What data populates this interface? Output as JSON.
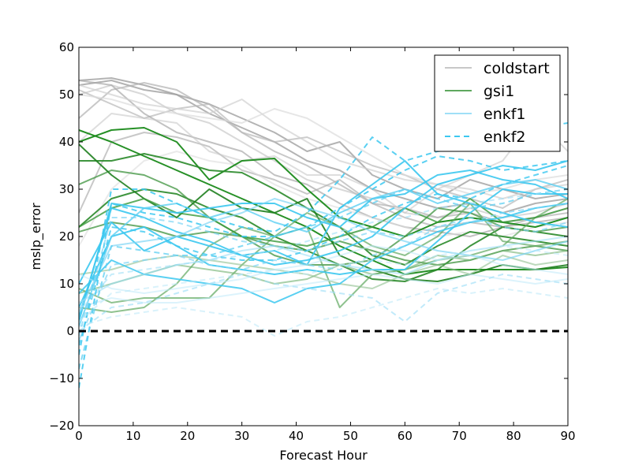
{
  "chart_data": {
    "type": "line",
    "title": "",
    "xlabel": "Forecast Hour",
    "ylabel": "mslp_error",
    "xlim": [
      0,
      90
    ],
    "ylim": [
      -20,
      60
    ],
    "xticks": [
      0,
      10,
      20,
      30,
      40,
      50,
      60,
      70,
      80,
      90
    ],
    "yticks": [
      -20,
      -10,
      0,
      10,
      20,
      30,
      40,
      50,
      60
    ],
    "xtick_labels": [
      "0",
      "10",
      "20",
      "30",
      "40",
      "50",
      "60",
      "70",
      "80",
      "90"
    ],
    "ytick_labels": [
      "−20",
      "−10",
      "0",
      "10",
      "20",
      "30",
      "40",
      "50",
      "60"
    ],
    "x": [
      0,
      6,
      12,
      18,
      24,
      30,
      36,
      42,
      48,
      54,
      60,
      66,
      72,
      78,
      84,
      90
    ],
    "legend_position": "top-right",
    "reference_line": {
      "y": 0,
      "style": "dashed",
      "color": "#000000"
    },
    "legend": [
      {
        "label": "coldstart",
        "color": "#c8c8c8"
      },
      {
        "label": "gsi1",
        "color": "#5fa85f"
      },
      {
        "label": "enkf1",
        "color": "#9fdff7"
      },
      {
        "label": "enkf2",
        "color": "#3cc8f0",
        "dashed": true
      }
    ],
    "series": [
      {
        "group": "coldstart",
        "color": "#a0a0a0",
        "opacity": 0.8,
        "values": [
          52,
          53,
          51,
          50,
          48,
          45,
          42,
          38,
          40,
          33,
          30,
          28,
          32,
          30,
          28,
          29
        ]
      },
      {
        "group": "coldstart",
        "color": "#a0a0a0",
        "opacity": 0.8,
        "values": [
          53,
          53.5,
          52,
          50,
          46,
          43,
          40,
          36,
          34,
          30,
          28,
          26,
          27,
          25,
          27,
          28
        ]
      },
      {
        "group": "coldstart",
        "color": "#b0b0b0",
        "opacity": 0.7,
        "values": [
          45,
          51,
          52.5,
          51,
          47,
          42,
          38,
          35,
          31,
          27,
          24,
          22,
          23,
          22,
          24,
          25
        ]
      },
      {
        "group": "coldstart",
        "color": "#b8b8b8",
        "opacity": 0.7,
        "values": [
          51,
          48,
          45,
          47,
          48,
          42,
          40,
          41,
          38,
          35,
          33,
          30,
          28,
          26,
          30,
          32
        ]
      },
      {
        "group": "coldstart",
        "color": "#c0c0c0",
        "opacity": 0.6,
        "values": [
          50,
          52,
          50,
          46,
          44,
          40,
          36,
          32,
          30,
          28,
          25,
          24,
          26,
          24,
          25,
          27
        ]
      },
      {
        "group": "coldstart",
        "color": "#a8a8a8",
        "opacity": 0.7,
        "values": [
          53,
          52,
          46,
          42,
          40,
          38,
          33,
          31,
          27,
          24,
          22,
          21,
          20,
          22,
          23,
          24
        ]
      },
      {
        "group": "coldstart",
        "color": "#d0d0d0",
        "opacity": 0.7,
        "values": [
          52,
          50,
          48,
          47,
          46,
          49,
          44,
          40,
          36,
          34,
          32,
          31,
          30,
          28,
          30,
          31
        ]
      },
      {
        "group": "coldstart",
        "color": "#dcdcdc",
        "opacity": 0.7,
        "values": [
          50,
          49,
          47,
          46,
          45,
          44,
          47,
          45,
          41,
          37,
          33,
          31,
          29,
          30,
          32,
          33
        ]
      },
      {
        "group": "coldstart",
        "color": "#b0b0b0",
        "opacity": 0.7,
        "values": [
          25,
          40,
          42,
          41,
          39,
          34,
          32,
          29,
          32,
          27,
          26,
          24,
          25,
          23,
          24,
          26
        ]
      },
      {
        "group": "coldstart",
        "color": "#c8c8c8",
        "opacity": 0.6,
        "values": [
          40,
          46,
          45,
          44,
          38,
          36,
          37,
          33,
          33,
          30,
          25,
          30,
          33,
          36,
          45,
          38
        ]
      },
      {
        "group": "coldstart",
        "color": "#dcdcdc",
        "opacity": 0.6,
        "values": [
          18,
          30,
          36,
          38,
          36,
          35,
          31,
          28,
          26,
          24,
          22,
          20,
          21,
          20,
          22,
          23
        ]
      },
      {
        "group": "gsi1",
        "color": "#1a8a1a",
        "opacity": 0.95,
        "values": [
          42.5,
          40,
          37,
          34,
          31,
          28,
          25,
          22,
          18,
          15,
          12,
          13,
          13,
          13,
          13,
          13.5
        ]
      },
      {
        "group": "gsi1",
        "color": "#1a8a1a",
        "opacity": 0.95,
        "values": [
          40,
          42.5,
          43,
          40,
          32,
          36,
          36.5,
          30,
          24,
          22,
          20,
          23,
          24,
          23,
          22,
          24
        ]
      },
      {
        "group": "gsi1",
        "color": "#2a8a2a",
        "opacity": 0.9,
        "values": [
          36,
          36,
          37.5,
          36,
          34,
          33.5,
          30,
          26,
          22,
          16,
          14,
          18,
          21,
          20,
          19,
          18
        ]
      },
      {
        "group": "gsi1",
        "color": "#2a8a2a",
        "opacity": 0.9,
        "values": [
          22,
          28,
          30,
          29,
          26,
          24,
          20,
          17,
          14,
          11,
          10.5,
          13,
          18,
          22,
          21,
          20
        ]
      },
      {
        "group": "gsi1",
        "color": "#4a9a4a",
        "opacity": 0.8,
        "values": [
          31,
          34,
          33,
          30,
          24,
          20,
          16,
          14,
          14,
          15,
          20,
          26,
          25,
          22,
          21,
          22
        ]
      },
      {
        "group": "gsi1",
        "color": "#4a9a4a",
        "opacity": 0.8,
        "values": [
          21,
          23,
          22,
          20,
          21,
          20,
          18,
          17,
          19,
          17,
          15,
          14,
          15,
          17,
          18,
          17
        ]
      },
      {
        "group": "gsi1",
        "color": "#5fa85f",
        "opacity": 0.7,
        "values": [
          9,
          6,
          7,
          7,
          7,
          14,
          20,
          22,
          5,
          12,
          13,
          15,
          16,
          18,
          24,
          28
        ]
      },
      {
        "group": "gsi1",
        "color": "#1f7f1f",
        "opacity": 0.9,
        "values": [
          39.5,
          33,
          28,
          24,
          30,
          26,
          25,
          28,
          16,
          13,
          11,
          10.5,
          12,
          14,
          13,
          14
        ]
      },
      {
        "group": "gsi1",
        "color": "#6fb06f",
        "opacity": 0.6,
        "values": [
          8,
          10,
          12,
          14,
          13,
          12,
          10,
          11,
          14,
          12,
          13,
          16,
          15,
          17,
          16,
          17
        ]
      },
      {
        "group": "gsi1",
        "color": "#5fa85f",
        "opacity": 0.7,
        "values": [
          5,
          4,
          5,
          10,
          18,
          22,
          20,
          25,
          22,
          18,
          16,
          20,
          27,
          19,
          18,
          19
        ]
      },
      {
        "group": "gsi1",
        "color": "#8fc08f",
        "opacity": 0.6,
        "values": [
          12,
          13,
          15,
          16,
          15,
          14,
          13,
          12,
          10,
          9,
          12,
          14,
          12,
          16,
          14,
          15
        ]
      },
      {
        "group": "gsi1",
        "color": "#3a9a3a",
        "opacity": 0.8,
        "values": [
          22,
          26,
          28,
          25,
          24,
          20,
          19,
          18,
          20,
          22,
          26,
          23,
          28,
          23,
          24,
          26
        ]
      },
      {
        "group": "enkf1",
        "color": "#3cc8f0",
        "opacity": 0.9,
        "values": [
          2,
          27,
          26,
          25,
          26,
          27,
          27,
          24,
          22,
          28,
          29,
          33,
          34,
          32,
          31,
          28
        ]
      },
      {
        "group": "enkf1",
        "color": "#3cc8f0",
        "opacity": 0.9,
        "values": [
          10,
          23,
          17,
          20,
          18,
          16,
          14,
          15,
          17,
          20,
          26,
          31,
          33,
          35,
          34,
          36
        ]
      },
      {
        "group": "enkf1",
        "color": "#3cc8f0",
        "opacity": 0.9,
        "values": [
          5,
          20,
          22,
          18,
          14,
          13,
          12,
          13,
          12,
          13,
          13,
          19,
          25,
          30,
          29,
          29
        ]
      },
      {
        "group": "enkf1",
        "color": "#3cc8f0",
        "opacity": 0.9,
        "values": [
          3,
          26,
          24,
          21,
          19,
          16,
          17,
          14,
          26,
          31,
          36,
          29,
          27,
          25,
          23,
          22
        ]
      },
      {
        "group": "enkf1",
        "color": "#3cc8f0",
        "opacity": 0.85,
        "values": [
          8,
          15,
          12,
          11,
          10,
          9,
          6,
          9,
          10,
          15,
          18,
          21,
          23,
          24,
          26,
          27
        ]
      },
      {
        "group": "enkf1",
        "color": "#7fd6f5",
        "opacity": 0.7,
        "values": [
          4,
          18,
          19,
          20,
          23,
          25,
          28,
          26,
          24,
          21,
          19,
          17,
          16,
          15,
          17,
          19
        ]
      },
      {
        "group": "enkf1",
        "color": "#9fdff7",
        "opacity": 0.6,
        "values": [
          6,
          10,
          12,
          14,
          15,
          17,
          18,
          16,
          14,
          13,
          12,
          15,
          17,
          18,
          19,
          20
        ]
      },
      {
        "group": "enkf1",
        "color": "#bfe9f9",
        "opacity": 0.55,
        "values": [
          5,
          7,
          6,
          6,
          7,
          8,
          9,
          10,
          11,
          12,
          11,
          10,
          12,
          11,
          10,
          11
        ]
      },
      {
        "group": "enkf1",
        "color": "#bfe9f9",
        "opacity": 0.55,
        "values": [
          12,
          9,
          8,
          9,
          10,
          11,
          13,
          14,
          16,
          18,
          17,
          15,
          16,
          14,
          13,
          12
        ]
      },
      {
        "group": "enkf1",
        "color": "#5ccff2",
        "opacity": 0.8,
        "values": [
          1,
          20,
          26,
          27,
          24,
          26,
          23,
          21,
          25,
          28,
          30,
          27,
          29,
          31,
          32,
          30
        ]
      },
      {
        "group": "enkf2",
        "color": "#3cc8f0",
        "opacity": 0.85,
        "dashed": true,
        "values": [
          -5,
          30,
          30,
          27,
          24,
          22,
          21,
          25,
          32,
          41,
          36,
          38,
          39,
          40,
          43,
          44
        ]
      },
      {
        "group": "enkf2",
        "color": "#3cc8f0",
        "opacity": 0.85,
        "dashed": true,
        "values": [
          -12,
          27,
          25,
          24,
          22,
          20,
          20,
          22,
          26,
          30,
          34,
          37,
          36,
          34,
          35,
          36
        ]
      },
      {
        "group": "enkf2",
        "color": "#3cc8f0",
        "opacity": 0.8,
        "dashed": true,
        "values": [
          -3,
          22,
          21,
          18,
          16,
          15,
          15,
          17,
          20,
          24,
          27,
          29,
          28,
          31,
          33,
          35
        ]
      },
      {
        "group": "enkf2",
        "color": "#5ccff2",
        "opacity": 0.75,
        "dashed": true,
        "values": [
          -8,
          18,
          17,
          16,
          16,
          18,
          20,
          22,
          24,
          27,
          30,
          28,
          26,
          27,
          29,
          30
        ]
      },
      {
        "group": "enkf2",
        "color": "#7fd6f5",
        "opacity": 0.7,
        "dashed": true,
        "values": [
          -2,
          14,
          15,
          16,
          14,
          13,
          15,
          14,
          13,
          16,
          18,
          22,
          24,
          22,
          21,
          23
        ]
      },
      {
        "group": "enkf2",
        "color": "#9fdff7",
        "opacity": 0.65,
        "dashed": true,
        "values": [
          0,
          5,
          6,
          8,
          10,
          12,
          10,
          9,
          8,
          7,
          2,
          8,
          10,
          12,
          11,
          10
        ]
      },
      {
        "group": "enkf2",
        "color": "#bfe9f9",
        "opacity": 0.6,
        "dashed": true,
        "values": [
          1,
          3,
          4,
          5,
          4,
          3,
          -1,
          2,
          3,
          5,
          7,
          9,
          8,
          9,
          8,
          7
        ]
      },
      {
        "group": "enkf2",
        "color": "#bfe9f9",
        "opacity": 0.6,
        "dashed": true,
        "values": [
          2,
          8,
          9,
          10,
          11,
          12,
          13,
          12,
          14,
          15,
          14,
          16,
          17,
          18,
          17,
          16
        ]
      },
      {
        "group": "enkf2",
        "color": "#9fdff7",
        "opacity": 0.6,
        "dashed": true,
        "values": [
          4,
          12,
          13,
          14,
          15,
          16,
          17,
          19,
          21,
          23,
          24,
          26,
          27,
          28,
          29,
          30
        ]
      },
      {
        "group": "enkf2",
        "color": "#7fd6f5",
        "opacity": 0.7,
        "dashed": true,
        "values": [
          -1,
          24,
          24,
          23,
          21,
          19,
          18,
          17,
          19,
          21,
          20,
          22,
          23,
          25,
          26,
          27
        ]
      }
    ]
  }
}
